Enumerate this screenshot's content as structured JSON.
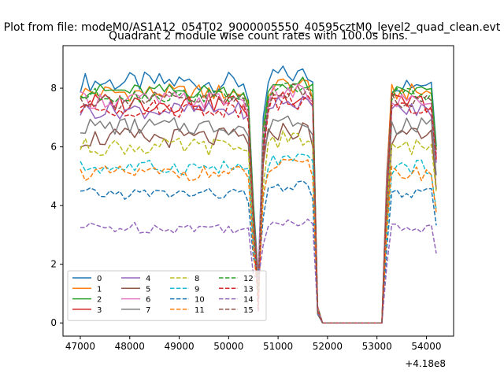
{
  "figure": {
    "suptitle": "Plot from file: modeM0/AS1A12_054T02_9000005550_40595cztM0_level2_quad_clean.evt",
    "title": "Quadrant 2 module wise count rates with 100.0s bins.",
    "offset_text": "+4.18e8"
  },
  "chart_data": {
    "type": "line",
    "title": "Quadrant 2 module wise count rates with 100.0s bins.",
    "xlabel": "",
    "ylabel": "",
    "x_offset": 418000000,
    "xlim": [
      46650,
      54550
    ],
    "ylim": [
      -0.45,
      9.45
    ],
    "xticks": [
      47000,
      48000,
      49000,
      50000,
      51000,
      52000,
      53000,
      54000
    ],
    "yticks": [
      0,
      2,
      4,
      6,
      8
    ],
    "grid": false,
    "legend": {
      "position": "lower-left",
      "ncol": 4
    },
    "series": [
      {
        "name": "0",
        "color": "#1f77b4",
        "dash": "solid",
        "base": 8.2,
        "amp": 0.35
      },
      {
        "name": "1",
        "color": "#ff7f0e",
        "dash": "solid",
        "base": 7.85,
        "amp": 0.3
      },
      {
        "name": "2",
        "color": "#2ca02c",
        "dash": "solid",
        "base": 7.9,
        "amp": 0.25
      },
      {
        "name": "3",
        "color": "#d62728",
        "dash": "solid",
        "base": 7.5,
        "amp": 0.35
      },
      {
        "name": "4",
        "color": "#9467bd",
        "dash": "solid",
        "base": 7.25,
        "amp": 0.3
      },
      {
        "name": "5",
        "color": "#8c564b",
        "dash": "solid",
        "base": 6.3,
        "amp": 0.35
      },
      {
        "name": "6",
        "color": "#e377c2",
        "dash": "solid",
        "base": 7.6,
        "amp": 0.3
      },
      {
        "name": "7",
        "color": "#7f7f7f",
        "dash": "solid",
        "base": 6.7,
        "amp": 0.3
      },
      {
        "name": "8",
        "color": "#bcbd22",
        "dash": "dashed",
        "base": 6.0,
        "amp": 0.3
      },
      {
        "name": "9",
        "color": "#17becf",
        "dash": "dashed",
        "base": 5.3,
        "amp": 0.25
      },
      {
        "name": "10",
        "color": "#1f77b4",
        "dash": "dashed",
        "base": 4.4,
        "amp": 0.2
      },
      {
        "name": "11",
        "color": "#ff7f0e",
        "dash": "dashed",
        "base": 5.1,
        "amp": 0.25
      },
      {
        "name": "12",
        "color": "#2ca02c",
        "dash": "dashed",
        "base": 7.75,
        "amp": 0.25
      },
      {
        "name": "13",
        "color": "#d62728",
        "dash": "dashed",
        "base": 7.3,
        "amp": 0.3
      },
      {
        "name": "14",
        "color": "#9467bd",
        "dash": "dashed",
        "base": 3.25,
        "amp": 0.2
      },
      {
        "name": "15",
        "color": "#8c564b",
        "dash": "dashed",
        "base": 7.6,
        "amp": 0.3
      }
    ]
  }
}
